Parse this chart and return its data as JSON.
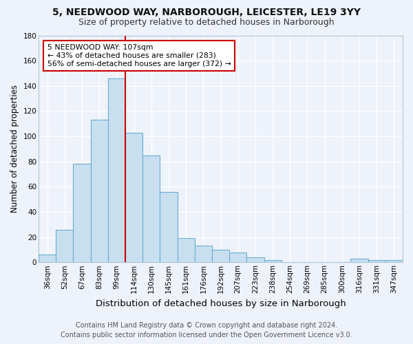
{
  "title_line1": "5, NEEDWOOD WAY, NARBOROUGH, LEICESTER, LE19 3YY",
  "title_line2": "Size of property relative to detached houses in Narborough",
  "xlabel": "Distribution of detached houses by size in Narborough",
  "ylabel": "Number of detached properties",
  "bar_labels": [
    "36sqm",
    "52sqm",
    "67sqm",
    "83sqm",
    "99sqm",
    "114sqm",
    "130sqm",
    "145sqm",
    "161sqm",
    "176sqm",
    "192sqm",
    "207sqm",
    "223sqm",
    "238sqm",
    "254sqm",
    "269sqm",
    "285sqm",
    "300sqm",
    "316sqm",
    "331sqm",
    "347sqm"
  ],
  "bar_values": [
    6,
    26,
    78,
    113,
    146,
    103,
    85,
    56,
    19,
    13,
    10,
    8,
    4,
    2,
    0,
    0,
    0,
    0,
    3,
    2,
    2
  ],
  "bar_facecolor": "#c8dff0",
  "bar_edgecolor": "#6aadcf",
  "vline_x_bar_index": 5,
  "vline_color": "#cc0000",
  "ylim": [
    0,
    180
  ],
  "yticks": [
    0,
    20,
    40,
    60,
    80,
    100,
    120,
    140,
    160,
    180
  ],
  "annotation_text_line1": "5 NEEDWOOD WAY: 107sqm",
  "annotation_text_line2": "← 43% of detached houses are smaller (283)",
  "annotation_text_line3": "56% of semi-detached houses are larger (372) →",
  "annotation_box_facecolor": "#ffffff",
  "annotation_box_edgecolor": "#cc0000",
  "footer_line1": "Contains HM Land Registry data © Crown copyright and database right 2024.",
  "footer_line2": "Contains public sector information licensed under the Open Government Licence v3.0.",
  "background_color": "#eef2fa",
  "plot_bg_color": "#eef2fa",
  "grid_color": "#ffffff",
  "title1_fontsize": 10,
  "title2_fontsize": 9,
  "xlabel_fontsize": 9.5,
  "ylabel_fontsize": 8.5,
  "tick_fontsize": 7.5,
  "footer_fontsize": 7.0,
  "annotation_fontsize": 7.8
}
